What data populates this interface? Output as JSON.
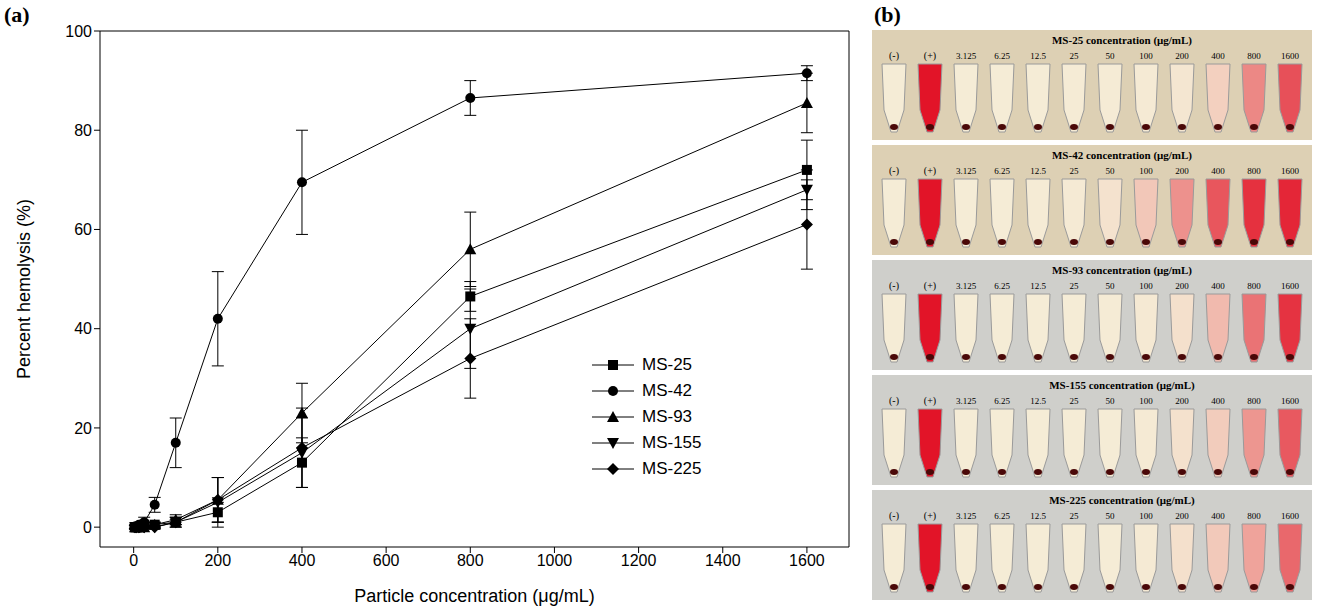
{
  "chart_data": {
    "type": "line",
    "panel_label": "(a)",
    "x_label": "Particle concentration (μg/mL)",
    "y_label": "Percent hemolysis (%)",
    "x": [
      3.125,
      6.25,
      12.5,
      25,
      50,
      100,
      200,
      400,
      800,
      1600
    ],
    "xlim": [
      -80,
      1700
    ],
    "xticks": [
      0,
      200,
      400,
      600,
      800,
      1000,
      1200,
      1400,
      1600
    ],
    "ylim": [
      -4,
      100
    ],
    "yticks": [
      0,
      20,
      40,
      60,
      80,
      100
    ],
    "grid": false,
    "legend": "lower right",
    "series": [
      {
        "name": "MS-25",
        "color": "#000000",
        "marker": "square",
        "values": [
          0,
          0,
          0,
          0.5,
          0.5,
          1,
          3,
          13,
          46.5,
          72
        ],
        "errors": [
          0.3,
          0.3,
          0.3,
          0.5,
          0.5,
          1,
          2,
          5,
          3,
          6
        ]
      },
      {
        "name": "MS-42",
        "color": "#000000",
        "marker": "circle",
        "values": [
          0,
          0,
          0.5,
          1,
          4.5,
          17,
          42,
          69.5,
          86.5,
          91.5
        ],
        "errors": [
          0.5,
          0.5,
          0.5,
          1,
          1.5,
          5,
          9.5,
          10.5,
          3.5,
          1.5
        ]
      },
      {
        "name": "MS-93",
        "color": "#000000",
        "marker": "triangle",
        "values": [
          0,
          0,
          0,
          0,
          0.5,
          1.5,
          5.5,
          23,
          56,
          85.5
        ],
        "errors": [
          0.3,
          0.3,
          0.3,
          0.3,
          0.5,
          1,
          4.5,
          6,
          7.5,
          6
        ]
      },
      {
        "name": "MS-155",
        "color": "#000000",
        "marker": "triangle-down",
        "values": [
          0,
          0,
          0,
          0,
          0,
          1,
          5,
          15,
          40,
          68
        ],
        "errors": [
          0.3,
          0.3,
          0.3,
          0.3,
          0.3,
          0.5,
          5,
          7,
          8,
          4
        ]
      },
      {
        "name": "MS-225",
        "color": "#000000",
        "marker": "diamond",
        "values": [
          0,
          0,
          0,
          0,
          0,
          1,
          5.5,
          16,
          34,
          61
        ],
        "errors": [
          0.3,
          0.3,
          0.3,
          0.3,
          0.3,
          1,
          4.5,
          8,
          8,
          9
        ]
      }
    ]
  },
  "panel_b": {
    "label": "(b)",
    "controls": [
      "(-)",
      "(+)"
    ],
    "concentrations": [
      3.125,
      6.25,
      12.5,
      25,
      50,
      100,
      200,
      400,
      800,
      1600
    ],
    "rows": [
      "MS-25 concentration (μg/mL)",
      "MS-42 concentration (μg/mL)",
      "MS-93 concentration (μg/mL)",
      "MS-155 concentration (μg/mL)",
      "MS-225 concentration (μg/mL)"
    ]
  }
}
